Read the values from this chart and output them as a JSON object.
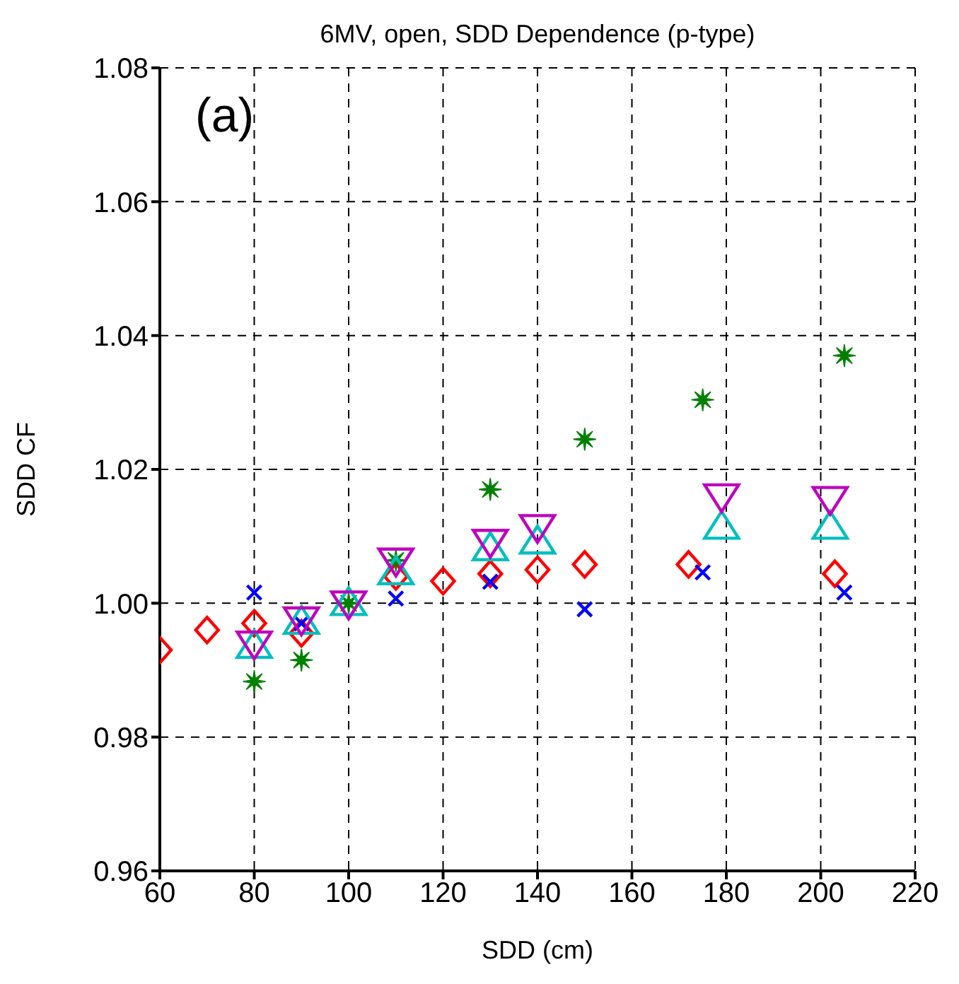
{
  "chart_data": {
    "type": "scatter",
    "title": "6MV, open, SDD Dependence (p-type)",
    "xlabel": "SDD (cm)",
    "ylabel": "SDD CF",
    "annotations": [
      "(a)"
    ],
    "xlim": [
      60,
      220
    ],
    "xticks": [
      60,
      80,
      100,
      120,
      140,
      160,
      180,
      200,
      220
    ],
    "ylim": [
      0.96,
      1.08
    ],
    "yticks": [
      0.96,
      0.98,
      {
        "value": 1,
        "label": "1.00"
      },
      1.02,
      1.04,
      1.06,
      1.08
    ],
    "grid": true,
    "series": [
      {
        "color": "#ff0000",
        "marker": "diamond",
        "x": [
          60,
          70,
          80,
          90,
          100,
          110,
          120,
          130,
          140,
          150,
          172,
          203
        ],
        "values": [
          0.993,
          0.996,
          0.997,
          0.9955,
          null,
          1.004,
          1.0033,
          1.0044,
          1.005,
          1.0058,
          1.0058,
          1.0044
        ]
      },
      {
        "color": "#0000ff",
        "marker": "cross",
        "x": [
          80,
          90,
          100,
          110,
          130,
          150,
          175,
          205
        ],
        "values": [
          1.0016,
          0.997,
          null,
          1.0007,
          1.0032,
          0.9991,
          1.0046,
          1.0016
        ]
      },
      {
        "color": "#008000",
        "marker": "star",
        "x": [
          80,
          90,
          100,
          110,
          130,
          150,
          175,
          205
        ],
        "values": [
          0.9883,
          0.9915,
          1.0,
          1.0064,
          1.017,
          1.0245,
          1.0304,
          1.037
        ]
      },
      {
        "color": "#00bfbf",
        "marker": "triangle",
        "x": [
          80,
          90,
          100,
          110,
          130,
          140,
          179,
          202
        ],
        "values": [
          0.9936,
          0.9972,
          1.0,
          1.0046,
          1.0082,
          1.0092,
          1.0114,
          1.0114
        ]
      },
      {
        "color": "#bf00bf",
        "marker": "triangle-down",
        "x": [
          80,
          90,
          100,
          110,
          130,
          140,
          179,
          202
        ],
        "values": [
          0.994,
          0.9976,
          1.0,
          1.0064,
          1.0092,
          1.0114,
          1.016,
          1.0156
        ]
      }
    ]
  }
}
